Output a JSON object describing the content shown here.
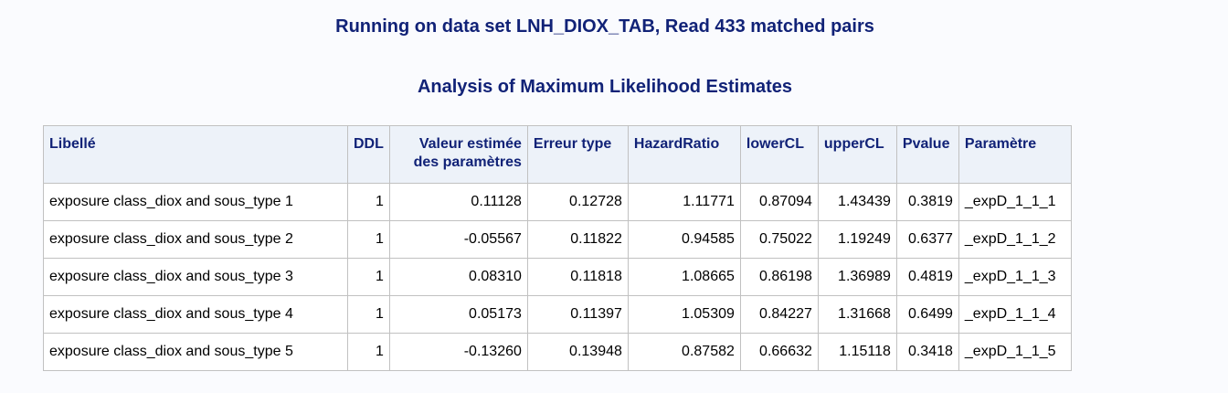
{
  "title": "Running on data set LNH_DIOX_TAB, Read 433 matched pairs",
  "subtitle": "Analysis of Maximum Likelihood Estimates",
  "columns": [
    "Libellé",
    "DDL",
    "Valeur estimée des paramètres",
    "Erreur type",
    "HazardRatio",
    "lowerCL",
    "upperCL",
    "Pvalue",
    "Paramètre"
  ],
  "rows": [
    [
      "exposure class_diox and sous_type 1",
      "1",
      "0.11128",
      "0.12728",
      "1.11771",
      "0.87094",
      "1.43439",
      "0.3819",
      "_expD_1_1_1"
    ],
    [
      "exposure class_diox and sous_type 2",
      "1",
      "-0.05567",
      "0.11822",
      "0.94585",
      "0.75022",
      "1.19249",
      "0.6377",
      "_expD_1_1_2"
    ],
    [
      "exposure class_diox and sous_type 3",
      "1",
      "0.08310",
      "0.11818",
      "1.08665",
      "0.86198",
      "1.36989",
      "0.4819",
      "_expD_1_1_3"
    ],
    [
      "exposure class_diox and sous_type 4",
      "1",
      "0.05173",
      "0.11397",
      "1.05309",
      "0.84227",
      "1.31668",
      "0.6499",
      "_expD_1_1_4"
    ],
    [
      "exposure class_diox and sous_type 5",
      "1",
      "-0.13260",
      "0.13948",
      "0.87582",
      "0.66632",
      "1.15118",
      "0.3418",
      "_expD_1_1_5"
    ]
  ]
}
